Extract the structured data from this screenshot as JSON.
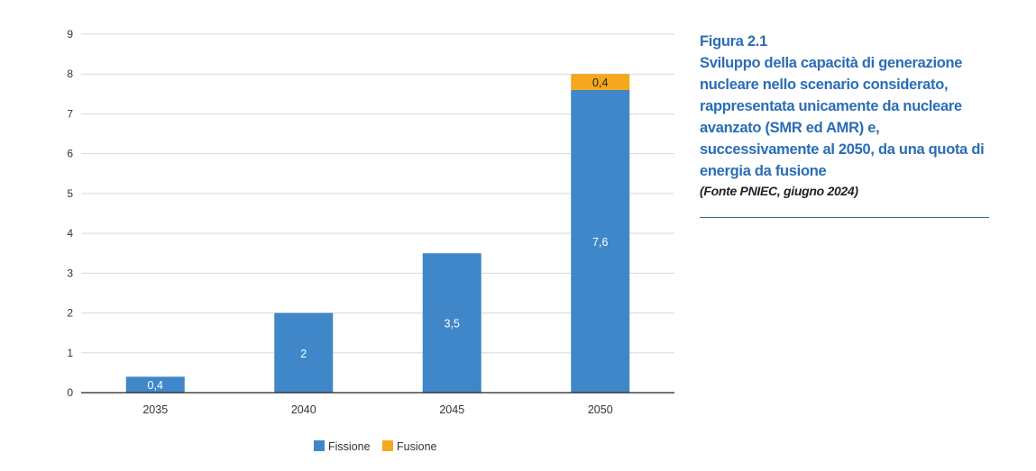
{
  "caption": {
    "figure": "Figura 2.1",
    "title": "Sviluppo della capacità di generazione nucleare nello scenario considerato, rappresentata unicamente da nucleare avanzato (SMR ed AMR) e, successivamente al 2050, da una quota di energia da fusione",
    "source": "(Fonte PNIEC, giugno 2024)"
  },
  "chart_data": {
    "type": "bar",
    "stacked": true,
    "categories": [
      "2035",
      "2040",
      "2045",
      "2050"
    ],
    "series": [
      {
        "name": "Fissione",
        "values": [
          0.4,
          2,
          3.5,
          7.6
        ],
        "labels": [
          "0,4",
          "2",
          "3,5",
          "7,6"
        ],
        "color": "#3f87c8"
      },
      {
        "name": "Fusione",
        "values": [
          0,
          0,
          0,
          0.4
        ],
        "labels": [
          "",
          "",
          "",
          "0,4"
        ],
        "color": "#f5a81c"
      }
    ],
    "ylim": [
      0,
      9
    ],
    "yticks": [
      0,
      1,
      2,
      3,
      4,
      5,
      6,
      7,
      8,
      9
    ],
    "grid": true,
    "legend": "bottom-center"
  }
}
